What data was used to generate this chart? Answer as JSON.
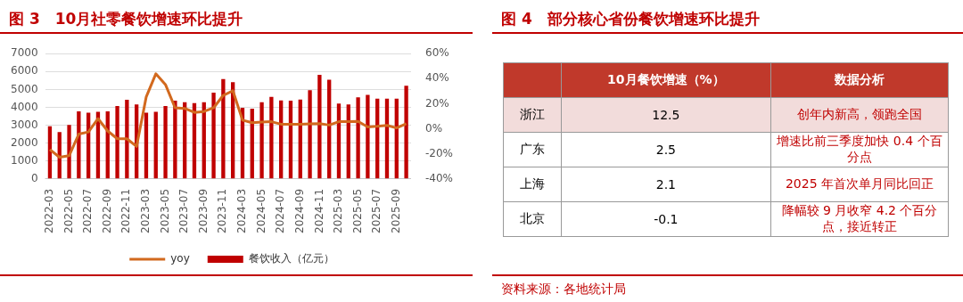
{
  "chart_data": [
    {
      "type": "bar",
      "title": "图 3　10月社零餐饮增速环比提升",
      "categories": [
        "2022-03",
        null,
        "2022-05",
        null,
        "2022-07",
        null,
        "2022-09",
        null,
        "2022-11",
        null,
        "2023-03",
        null,
        "2023-05",
        null,
        "2023-07",
        null,
        "2023-09",
        null,
        "2023-11",
        null,
        "2024-03",
        null,
        "2024-05",
        null,
        "2024-07",
        null,
        "2024-09",
        null,
        "2024-11",
        null,
        "2025-03",
        null,
        "2025-05",
        null,
        "2025-07",
        null,
        "2025-09",
        null
      ],
      "series": [
        {
          "name": "餐饮收入（亿元）",
          "type": "bar",
          "color": "#c00000",
          "values": [
            2940,
            2620,
            3020,
            3770,
            3700,
            3750,
            3770,
            4080,
            4420,
            4160,
            3700,
            3750,
            4080,
            4370,
            4280,
            4230,
            4280,
            4820,
            5580,
            5410,
            3970,
            3920,
            4280,
            4590,
            4390,
            4370,
            4440,
            4960,
            5820,
            5540,
            4210,
            4160,
            4560,
            4700,
            4490,
            4490,
            4490,
            5200
          ]
        },
        {
          "name": "yoy",
          "type": "line",
          "axis": "y2",
          "color": "#d2691e",
          "values": [
            -16.5,
            -22.7,
            -21.5,
            -4.2,
            -2.5,
            8.1,
            -1.7,
            -7.9,
            -7.9,
            -14.1,
            25.4,
            43.9,
            35.3,
            16.8,
            16.3,
            13.1,
            13.8,
            16.8,
            26.7,
            30.4,
            6.9,
            4.9,
            5.4,
            5.7,
            3.7,
            3.7,
            3.7,
            4,
            4.2,
            3,
            5.7,
            5.7,
            5.9,
            1.5,
            2,
            2.7,
            0.7,
            4
          ]
        }
      ],
      "ylim": [
        0,
        7000
      ],
      "yticks": [
        0,
        1000,
        2000,
        3000,
        4000,
        5000,
        6000,
        7000
      ],
      "y2lim": [
        -40,
        60
      ],
      "y2ticks": [
        {
          "value": -40,
          "label": "-40%"
        },
        {
          "value": -20,
          "label": "-20%"
        },
        {
          "value": 0,
          "label": "0%"
        },
        {
          "value": 20,
          "label": "20%"
        },
        {
          "value": 40,
          "label": "40%"
        },
        {
          "value": 60,
          "label": "60%"
        }
      ],
      "grid": "y",
      "legend": "bottom",
      "marker": "none",
      "line_style": "solid"
    },
    {
      "type": "other",
      "title": "图 4　部分核心省份餐饮增速环比提升",
      "categories": [
        "浙江",
        "广东",
        "上海",
        "北京"
      ],
      "values": [
        12.5,
        2.5,
        2.1,
        -0.1
      ],
      "data_labels": true,
      "annotations": [
        "10月餐饮增速（%）",
        "数据分析",
        "创年内新高，领跑全国",
        "增速比前三季度加快 0.4 个百分点",
        "2025 年首次单月同比回正",
        "降幅较 9 月收窄 4.2 个百分点，接近转正",
        "资料来源：各地统计局"
      ]
    }
  ]
}
